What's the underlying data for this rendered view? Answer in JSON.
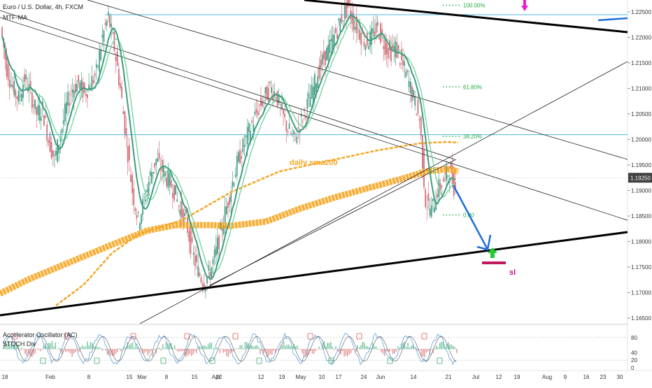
{
  "header": {
    "title": "Euro / U.S. Dollar, 4h, FXCM",
    "indicator": "MTF-MA"
  },
  "chart_data": {
    "type": "line",
    "x_ticks": [
      "18",
      "Feb",
      "8",
      "15",
      "Mar",
      "8",
      "15",
      "22",
      "Apr",
      "12",
      "19",
      "May",
      "10",
      "17",
      "24",
      "Jun",
      "14",
      "21",
      "Jul",
      "12",
      "19",
      "Aug",
      "9",
      "16",
      "23",
      "30"
    ],
    "y_ticks": [
      "1.22500",
      "1.22000",
      "1.21500",
      "1.21000",
      "1.20500",
      "1.20000",
      "1.19500",
      "1.19000",
      "1.18500",
      "1.18000",
      "1.17500",
      "1.17000",
      "1.16500"
    ],
    "ylim": [
      1.162,
      1.2265
    ],
    "current_price": "1.19250",
    "price_series": [
      1.222,
      1.214,
      1.21,
      1.208,
      1.212,
      1.209,
      1.205,
      1.206,
      1.2,
      1.196,
      1.201,
      1.2065,
      1.21,
      1.211,
      1.209,
      1.211,
      1.213,
      1.22,
      1.224,
      1.218,
      1.21,
      1.2,
      1.19,
      1.184,
      1.188,
      1.193,
      1.196,
      1.194,
      1.192,
      1.19,
      1.186,
      1.184,
      1.178,
      1.174,
      1.172,
      1.174,
      1.178,
      1.183,
      1.188,
      1.193,
      1.197,
      1.2,
      1.203,
      1.206,
      1.208,
      1.21,
      1.209,
      1.205,
      1.202,
      1.2,
      1.203,
      1.206,
      1.209,
      1.213,
      1.216,
      1.218,
      1.221,
      1.224,
      1.226,
      1.223,
      1.221,
      1.219,
      1.22,
      1.222,
      1.219,
      1.217,
      1.218,
      1.215,
      1.212,
      1.208,
      1.204,
      1.188,
      1.186,
      1.19,
      1.192,
      1.194,
      1.19
    ],
    "fib_levels": [
      {
        "label": "100.00%",
        "value": 1.2263
      },
      {
        "label": "61.80%",
        "value": 1.2103
      },
      {
        "label": "38.20%",
        "value": 1.2006
      },
      {
        "label": "0.00",
        "value": 1.1852
      }
    ],
    "horizontal_lines": [
      1.22445,
      1.20095
    ],
    "annotations": {
      "sma_label": "daily sma200",
      "sl_label": "sl"
    },
    "colors": {
      "candle_up": "#4a9e86",
      "candle_down": "#d2707a",
      "ma_fast": "#3a9e80",
      "ma_slow": "#7dd3a0",
      "sma_orange": "#f5a623",
      "trend_black": "#000000",
      "horizontal_blue": "#4fb8d8",
      "fib_green": "#22aa44",
      "arrow_blue": "#1e6fd9",
      "sl_pink": "#c2185b",
      "marker_magenta": "#e91ed3",
      "buy_arrow_green": "#22cc33"
    }
  },
  "oscillator": {
    "label1": "Accelerator Oscillator (AC)",
    "label2": "STOCH Div",
    "y_ticks": [
      "80",
      "40",
      "20",
      "0"
    ],
    "ylim": [
      0,
      100
    ],
    "levels": [
      80,
      20
    ]
  }
}
